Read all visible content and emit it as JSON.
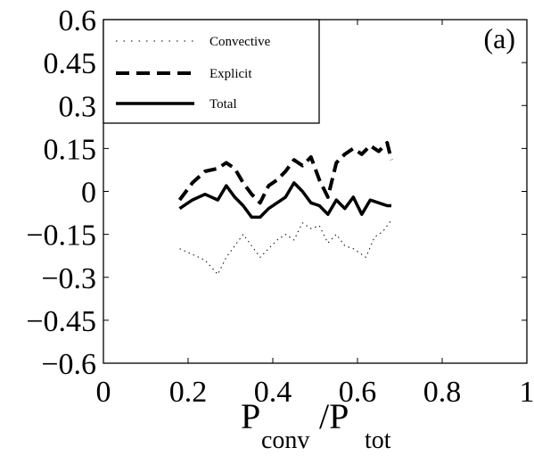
{
  "chart_data": {
    "type": "line",
    "panel_label": "(a)",
    "xlabel": {
      "main": "P",
      "sub1": "conv",
      "sep": "/P",
      "sub2": "tot"
    },
    "ylabel": "",
    "xlim": [
      0,
      1
    ],
    "ylim": [
      -0.6,
      0.6
    ],
    "xticks": [
      0,
      0.2,
      0.4,
      0.6,
      0.8,
      1
    ],
    "xtick_labels": [
      "0",
      "0.2",
      "0.4",
      "0.6",
      "0.8",
      "1"
    ],
    "yticks": [
      -0.6,
      -0.45,
      -0.3,
      -0.15,
      0,
      0.15,
      0.3,
      0.45,
      0.6
    ],
    "ytick_labels": [
      "−0.6",
      "−0.45",
      "−0.3",
      "−0.15",
      "0",
      "0.15",
      "0.3",
      "0.45",
      "0.6"
    ],
    "grid": false,
    "legend_position": "top-left",
    "series": [
      {
        "name": "Convective",
        "style": "dotted",
        "x": [
          0.18,
          0.21,
          0.24,
          0.27,
          0.29,
          0.31,
          0.33,
          0.35,
          0.37,
          0.39,
          0.41,
          0.43,
          0.45,
          0.47,
          0.49,
          0.51,
          0.53,
          0.55,
          0.57,
          0.59,
          0.62,
          0.64,
          0.66,
          0.68
        ],
        "y": [
          -0.2,
          -0.22,
          -0.24,
          -0.29,
          -0.23,
          -0.19,
          -0.15,
          -0.19,
          -0.23,
          -0.2,
          -0.17,
          -0.15,
          -0.17,
          -0.11,
          -0.13,
          -0.12,
          -0.18,
          -0.15,
          -0.19,
          -0.2,
          -0.23,
          -0.16,
          -0.14,
          -0.1
        ]
      },
      {
        "name": "Explicit",
        "style": "dashed",
        "x": [
          0.18,
          0.21,
          0.24,
          0.27,
          0.29,
          0.31,
          0.33,
          0.35,
          0.37,
          0.39,
          0.41,
          0.43,
          0.45,
          0.47,
          0.49,
          0.51,
          0.53,
          0.55,
          0.57,
          0.59,
          0.61,
          0.63,
          0.65,
          0.67,
          0.68
        ],
        "y": [
          -0.03,
          0.03,
          0.07,
          0.08,
          0.1,
          0.08,
          0.03,
          -0.01,
          -0.04,
          0.02,
          0.04,
          0.07,
          0.11,
          0.09,
          0.12,
          0.04,
          -0.02,
          0.1,
          0.13,
          0.15,
          0.13,
          0.16,
          0.14,
          0.17,
          0.11
        ]
      },
      {
        "name": "Total",
        "style": "solid",
        "x": [
          0.18,
          0.21,
          0.24,
          0.27,
          0.29,
          0.31,
          0.33,
          0.35,
          0.37,
          0.39,
          0.41,
          0.43,
          0.45,
          0.47,
          0.49,
          0.51,
          0.53,
          0.55,
          0.57,
          0.59,
          0.61,
          0.63,
          0.65,
          0.67,
          0.68
        ],
        "y": [
          -0.06,
          -0.03,
          -0.01,
          -0.03,
          0.02,
          -0.02,
          -0.05,
          -0.09,
          -0.09,
          -0.06,
          -0.04,
          -0.02,
          0.03,
          0.0,
          -0.04,
          -0.05,
          -0.08,
          -0.03,
          -0.06,
          -0.02,
          -0.08,
          -0.03,
          -0.04,
          -0.05,
          -0.05
        ]
      }
    ]
  }
}
